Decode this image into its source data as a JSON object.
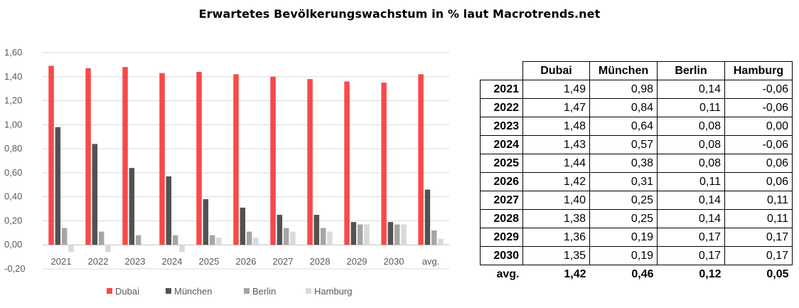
{
  "title": "Erwartetes Bevölkerungswachstum in % laut Macrotrends.net",
  "colors": {
    "Dubai": "#f8484a",
    "München": "#525252",
    "Berlin": "#a5a5a5",
    "Hamburg": "#d9d9d9",
    "grid": "#d9d9d9",
    "axis": "#bfbfbf"
  },
  "chart_data": {
    "type": "bar",
    "title": "Erwartetes Bevölkerungswachstum in % laut Macrotrends.net",
    "categories": [
      "2021",
      "2022",
      "2023",
      "2024",
      "2025",
      "2026",
      "2027",
      "2028",
      "2029",
      "2030",
      "avg."
    ],
    "series": [
      {
        "name": "Dubai",
        "values": [
          1.49,
          1.47,
          1.48,
          1.43,
          1.44,
          1.42,
          1.4,
          1.38,
          1.36,
          1.35,
          1.42
        ]
      },
      {
        "name": "München",
        "values": [
          0.98,
          0.84,
          0.64,
          0.57,
          0.38,
          0.31,
          0.25,
          0.25,
          0.19,
          0.19,
          0.46
        ]
      },
      {
        "name": "Berlin",
        "values": [
          0.14,
          0.11,
          0.08,
          0.08,
          0.08,
          0.11,
          0.14,
          0.14,
          0.17,
          0.17,
          0.12
        ]
      },
      {
        "name": "Hamburg",
        "values": [
          -0.06,
          -0.06,
          0.0,
          -0.06,
          0.06,
          0.06,
          0.11,
          0.11,
          0.17,
          0.17,
          0.05
        ]
      }
    ],
    "yticks": [
      "1,60",
      "1,40",
      "1,20",
      "1,00",
      "0,80",
      "0,60",
      "0,40",
      "0,20",
      "0,00",
      "-0,20"
    ],
    "ylim": [
      -0.2,
      1.6
    ],
    "grid": true,
    "legend": "bottom"
  },
  "table": {
    "headers": [
      "Dubai",
      "München",
      "Berlin",
      "Hamburg"
    ],
    "rows": [
      {
        "label": "2021",
        "values": [
          "1,49",
          "0,98",
          "0,14",
          "-0,06"
        ]
      },
      {
        "label": "2022",
        "values": [
          "1,47",
          "0,84",
          "0,11",
          "-0,06"
        ]
      },
      {
        "label": "2023",
        "values": [
          "1,48",
          "0,64",
          "0,08",
          "0,00"
        ]
      },
      {
        "label": "2024",
        "values": [
          "1,43",
          "0,57",
          "0,08",
          "-0,06"
        ]
      },
      {
        "label": "2025",
        "values": [
          "1,44",
          "0,38",
          "0,08",
          "0,06"
        ]
      },
      {
        "label": "2026",
        "values": [
          "1,42",
          "0,31",
          "0,11",
          "0,06"
        ]
      },
      {
        "label": "2027",
        "values": [
          "1,40",
          "0,25",
          "0,14",
          "0,11"
        ]
      },
      {
        "label": "2028",
        "values": [
          "1,38",
          "0,25",
          "0,14",
          "0,11"
        ]
      },
      {
        "label": "2029",
        "values": [
          "1,36",
          "0,19",
          "0,17",
          "0,17"
        ]
      },
      {
        "label": "2030",
        "values": [
          "1,35",
          "0,19",
          "0,17",
          "0,17"
        ]
      }
    ],
    "avg": {
      "label": "avg.",
      "values": [
        "1,42",
        "0,46",
        "0,12",
        "0,05"
      ]
    }
  }
}
